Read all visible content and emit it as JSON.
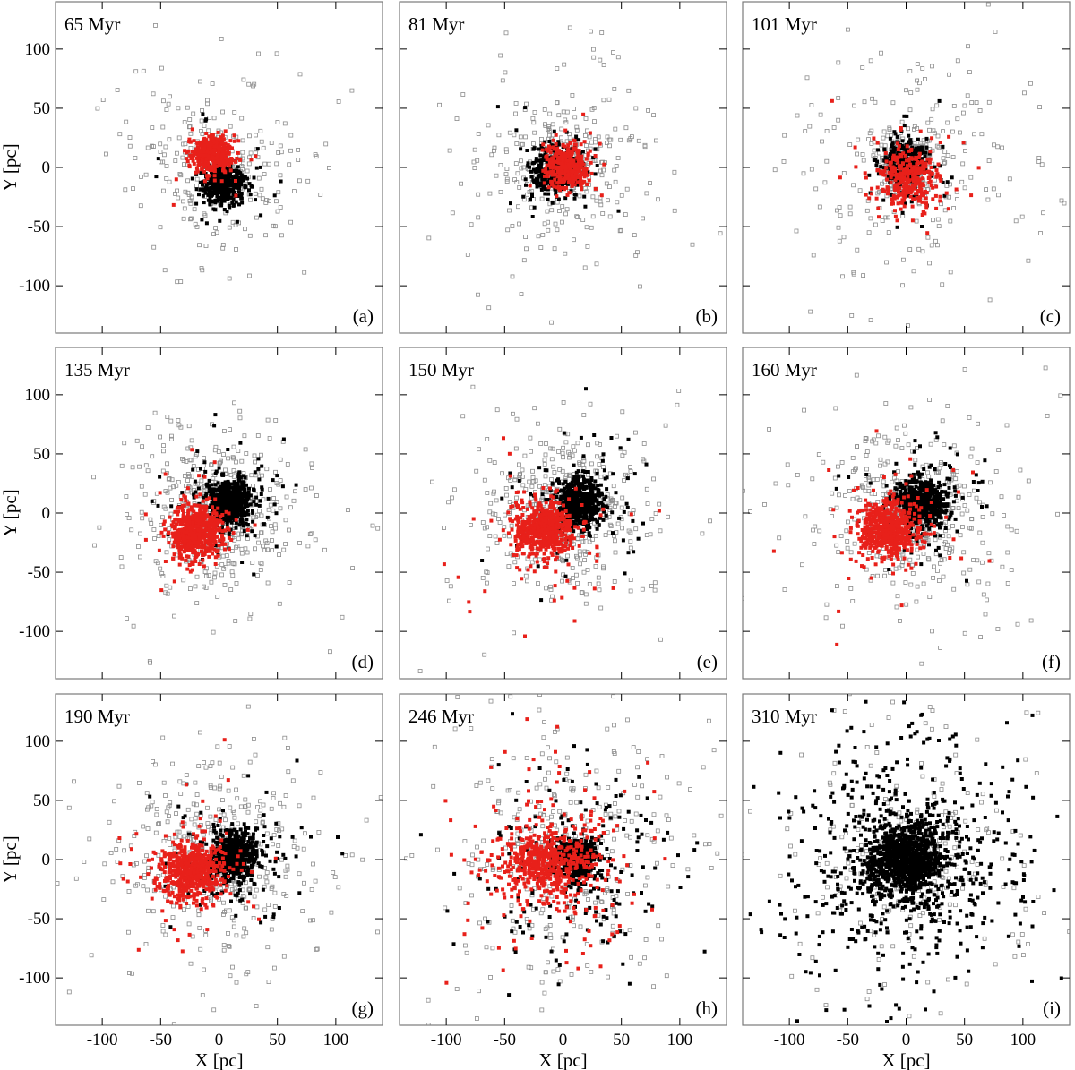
{
  "figure": {
    "x_axis_label": "X [pc]",
    "y_axis_label": "Y [pc]"
  },
  "chart_data": {
    "type": "scatter",
    "xlim": [
      -140,
      140
    ],
    "ylim": [
      -140,
      140
    ],
    "x_ticks": [
      -100,
      -50,
      0,
      50,
      100
    ],
    "y_ticks": [
      -100,
      -50,
      0,
      50,
      100
    ],
    "x_tick_labels": [
      "-100",
      "-50",
      "0",
      "50",
      "100"
    ],
    "y_tick_labels": [
      "-100",
      "-50",
      "0",
      "50",
      "100"
    ],
    "xlabel": "X [pc]",
    "ylabel": "Y [pc]",
    "colors": {
      "cluster1": "#000000",
      "cluster2": "#e8201a",
      "field": "#8c8c8c"
    },
    "series_legend": [
      "cluster 1 members (filled black)",
      "cluster 2 members (filled red)",
      "unbound/field stars (open grey squares)"
    ],
    "panels": [
      {
        "label": "(a)",
        "time": "65 Myr",
        "clusters": [
          {
            "series": "black",
            "cx": 4,
            "cy": -14,
            "sx": 9,
            "sy": 9,
            "n": 420,
            "halo_n": 35,
            "halo_s": 25
          },
          {
            "series": "red",
            "cx": -6,
            "cy": 11,
            "sx": 9,
            "sy": 8,
            "n": 360,
            "halo_n": 10,
            "halo_s": 18
          }
        ],
        "field": {
          "cx": 0,
          "cy": 0,
          "s": 55,
          "n": 230,
          "core_n": 70,
          "core_s": 22,
          "core_cx": 0,
          "core_cy": 0
        }
      },
      {
        "label": "(b)",
        "time": "81 Myr",
        "clusters": [
          {
            "series": "black",
            "cx": -7,
            "cy": -2,
            "sx": 10,
            "sy": 10,
            "n": 380,
            "halo_n": 40,
            "halo_s": 24
          },
          {
            "series": "red",
            "cx": 3,
            "cy": 0,
            "sx": 9,
            "sy": 9,
            "n": 360,
            "halo_n": 14,
            "halo_s": 20
          }
        ],
        "field": {
          "cx": 0,
          "cy": 0,
          "s": 55,
          "n": 250,
          "core_n": 90,
          "core_s": 22,
          "core_cx": 0,
          "core_cy": 0
        }
      },
      {
        "label": "(c)",
        "time": "101 Myr",
        "clusters": [
          {
            "series": "black",
            "cx": 0,
            "cy": 3,
            "sx": 10,
            "sy": 10,
            "n": 300,
            "halo_n": 40,
            "halo_s": 25
          },
          {
            "series": "red",
            "cx": 3,
            "cy": -10,
            "sx": 12,
            "sy": 13,
            "n": 330,
            "halo_n": 30,
            "halo_s": 28
          }
        ],
        "field": {
          "cx": 0,
          "cy": 0,
          "s": 55,
          "n": 260,
          "core_n": 260,
          "core_s": 12,
          "core_cx": 0,
          "core_cy": 2
        }
      },
      {
        "label": "(d)",
        "time": "135 Myr",
        "clusters": [
          {
            "series": "black",
            "cx": 10,
            "cy": 10,
            "sx": 9,
            "sy": 9,
            "n": 520,
            "halo_n": 90,
            "halo_s": 26
          },
          {
            "series": "red",
            "cx": -20,
            "cy": -16,
            "sx": 11,
            "sy": 12,
            "n": 520,
            "halo_n": 50,
            "halo_s": 25
          }
        ],
        "field": {
          "cx": -5,
          "cy": 0,
          "s": 55,
          "n": 270,
          "core_n": 230,
          "core_s": 28,
          "core_cx": -3,
          "core_cy": -2
        }
      },
      {
        "label": "(e)",
        "time": "150 Myr",
        "clusters": [
          {
            "series": "black",
            "cx": 14,
            "cy": 8,
            "sx": 10,
            "sy": 10,
            "n": 520,
            "halo_n": 90,
            "halo_s": 28
          },
          {
            "series": "red",
            "cx": -16,
            "cy": -14,
            "sx": 13,
            "sy": 12,
            "n": 520,
            "halo_n": 70,
            "halo_s": 30
          }
        ],
        "field": {
          "cx": 0,
          "cy": 0,
          "s": 58,
          "n": 280,
          "core_n": 200,
          "core_s": 32,
          "core_cx": 0,
          "core_cy": 0
        }
      },
      {
        "label": "(f)",
        "time": "160 Myr",
        "clusters": [
          {
            "series": "black",
            "cx": 14,
            "cy": 8,
            "sx": 10,
            "sy": 10,
            "n": 520,
            "halo_n": 90,
            "halo_s": 28
          },
          {
            "series": "red",
            "cx": -16,
            "cy": -14,
            "sx": 13,
            "sy": 12,
            "n": 520,
            "halo_n": 70,
            "halo_s": 30
          }
        ],
        "field": {
          "cx": 0,
          "cy": 0,
          "s": 58,
          "n": 280,
          "core_n": 200,
          "core_s": 32,
          "core_cx": 0,
          "core_cy": 0
        }
      },
      {
        "label": "(g)",
        "time": "190 Myr",
        "clusters": [
          {
            "series": "black",
            "cx": 12,
            "cy": 4,
            "sx": 10,
            "sy": 10,
            "n": 520,
            "halo_n": 100,
            "halo_s": 30
          },
          {
            "series": "red",
            "cx": -23,
            "cy": -11,
            "sx": 14,
            "sy": 12,
            "n": 520,
            "halo_n": 80,
            "halo_s": 32
          }
        ],
        "field": {
          "cx": 0,
          "cy": 0,
          "s": 62,
          "n": 300,
          "core_n": 150,
          "core_s": 40,
          "core_cx": 0,
          "core_cy": 0
        }
      },
      {
        "label": "(h)",
        "time": "246 Myr",
        "clusters": [
          {
            "series": "black",
            "cx": 10,
            "cy": 0,
            "sx": 10,
            "sy": 9,
            "n": 380,
            "halo_n": 180,
            "halo_s": 45
          },
          {
            "series": "red",
            "cx": -15,
            "cy": -2,
            "sx": 20,
            "sy": 14,
            "n": 480,
            "halo_n": 160,
            "halo_s": 42
          }
        ],
        "field": {
          "cx": 0,
          "cy": 0,
          "s": 70,
          "n": 340,
          "core_n": 40,
          "core_s": 40,
          "core_cx": 0,
          "core_cy": 0
        }
      },
      {
        "label": "(i)",
        "time": "310 Myr",
        "clusters": [
          {
            "series": "black",
            "cx": 0,
            "cy": 0,
            "sx": 16,
            "sy": 14,
            "n": 900,
            "halo_n": 650,
            "halo_s": 52
          }
        ],
        "field": {
          "cx": 0,
          "cy": 0,
          "s": 75,
          "n": 260,
          "core_n": 40,
          "core_s": 30,
          "core_cx": 0,
          "core_cy": 0
        }
      }
    ]
  }
}
